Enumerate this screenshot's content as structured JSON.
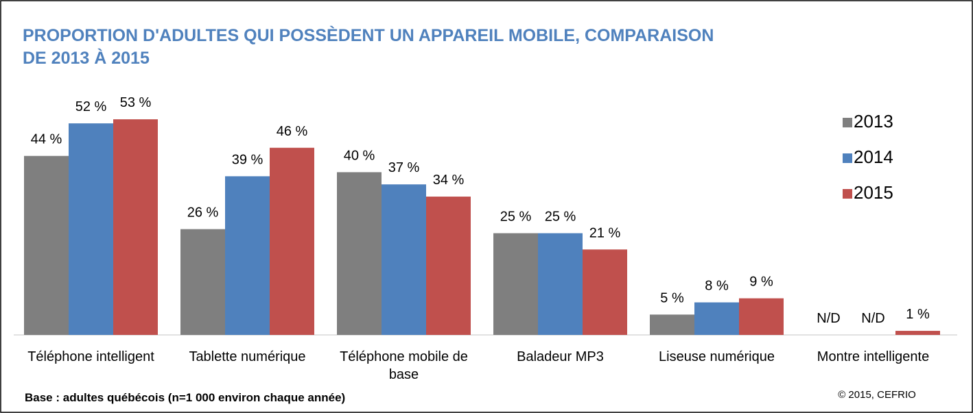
{
  "chart_data": {
    "type": "bar",
    "title": "PROPORTION D'ADULTES QUI POSSÈDENT UN APPAREIL MOBILE, COMPARAISON DE 2013 À 2015",
    "categories": [
      "Téléphone intelligent",
      "Tablette numérique",
      "Téléphone mobile de base",
      "Baladeur MP3",
      "Liseuse numérique",
      "Montre intelligente"
    ],
    "series": [
      {
        "name": "2013",
        "color": "#7f7f7f",
        "values": [
          44,
          26,
          40,
          25,
          5,
          null
        ],
        "value_labels": [
          "44 %",
          "26 %",
          "40 %",
          "25 %",
          "5 %",
          "N/D"
        ]
      },
      {
        "name": "2014",
        "color": "#4f81bd",
        "values": [
          52,
          39,
          37,
          25,
          8,
          null
        ],
        "value_labels": [
          "52 %",
          "39 %",
          "37 %",
          "25 %",
          "8 %",
          "N/D"
        ]
      },
      {
        "name": "2015",
        "color": "#c0504d",
        "values": [
          53,
          46,
          34,
          21,
          9,
          1
        ],
        "value_labels": [
          "53 %",
          "46 %",
          "34 %",
          "21 %",
          "9 %",
          "1 %"
        ]
      }
    ],
    "legend": "right",
    "note": "Base : adultes québécois (n=1 000 environ chaque année)",
    "source": "© 2015, CEFRIO"
  }
}
